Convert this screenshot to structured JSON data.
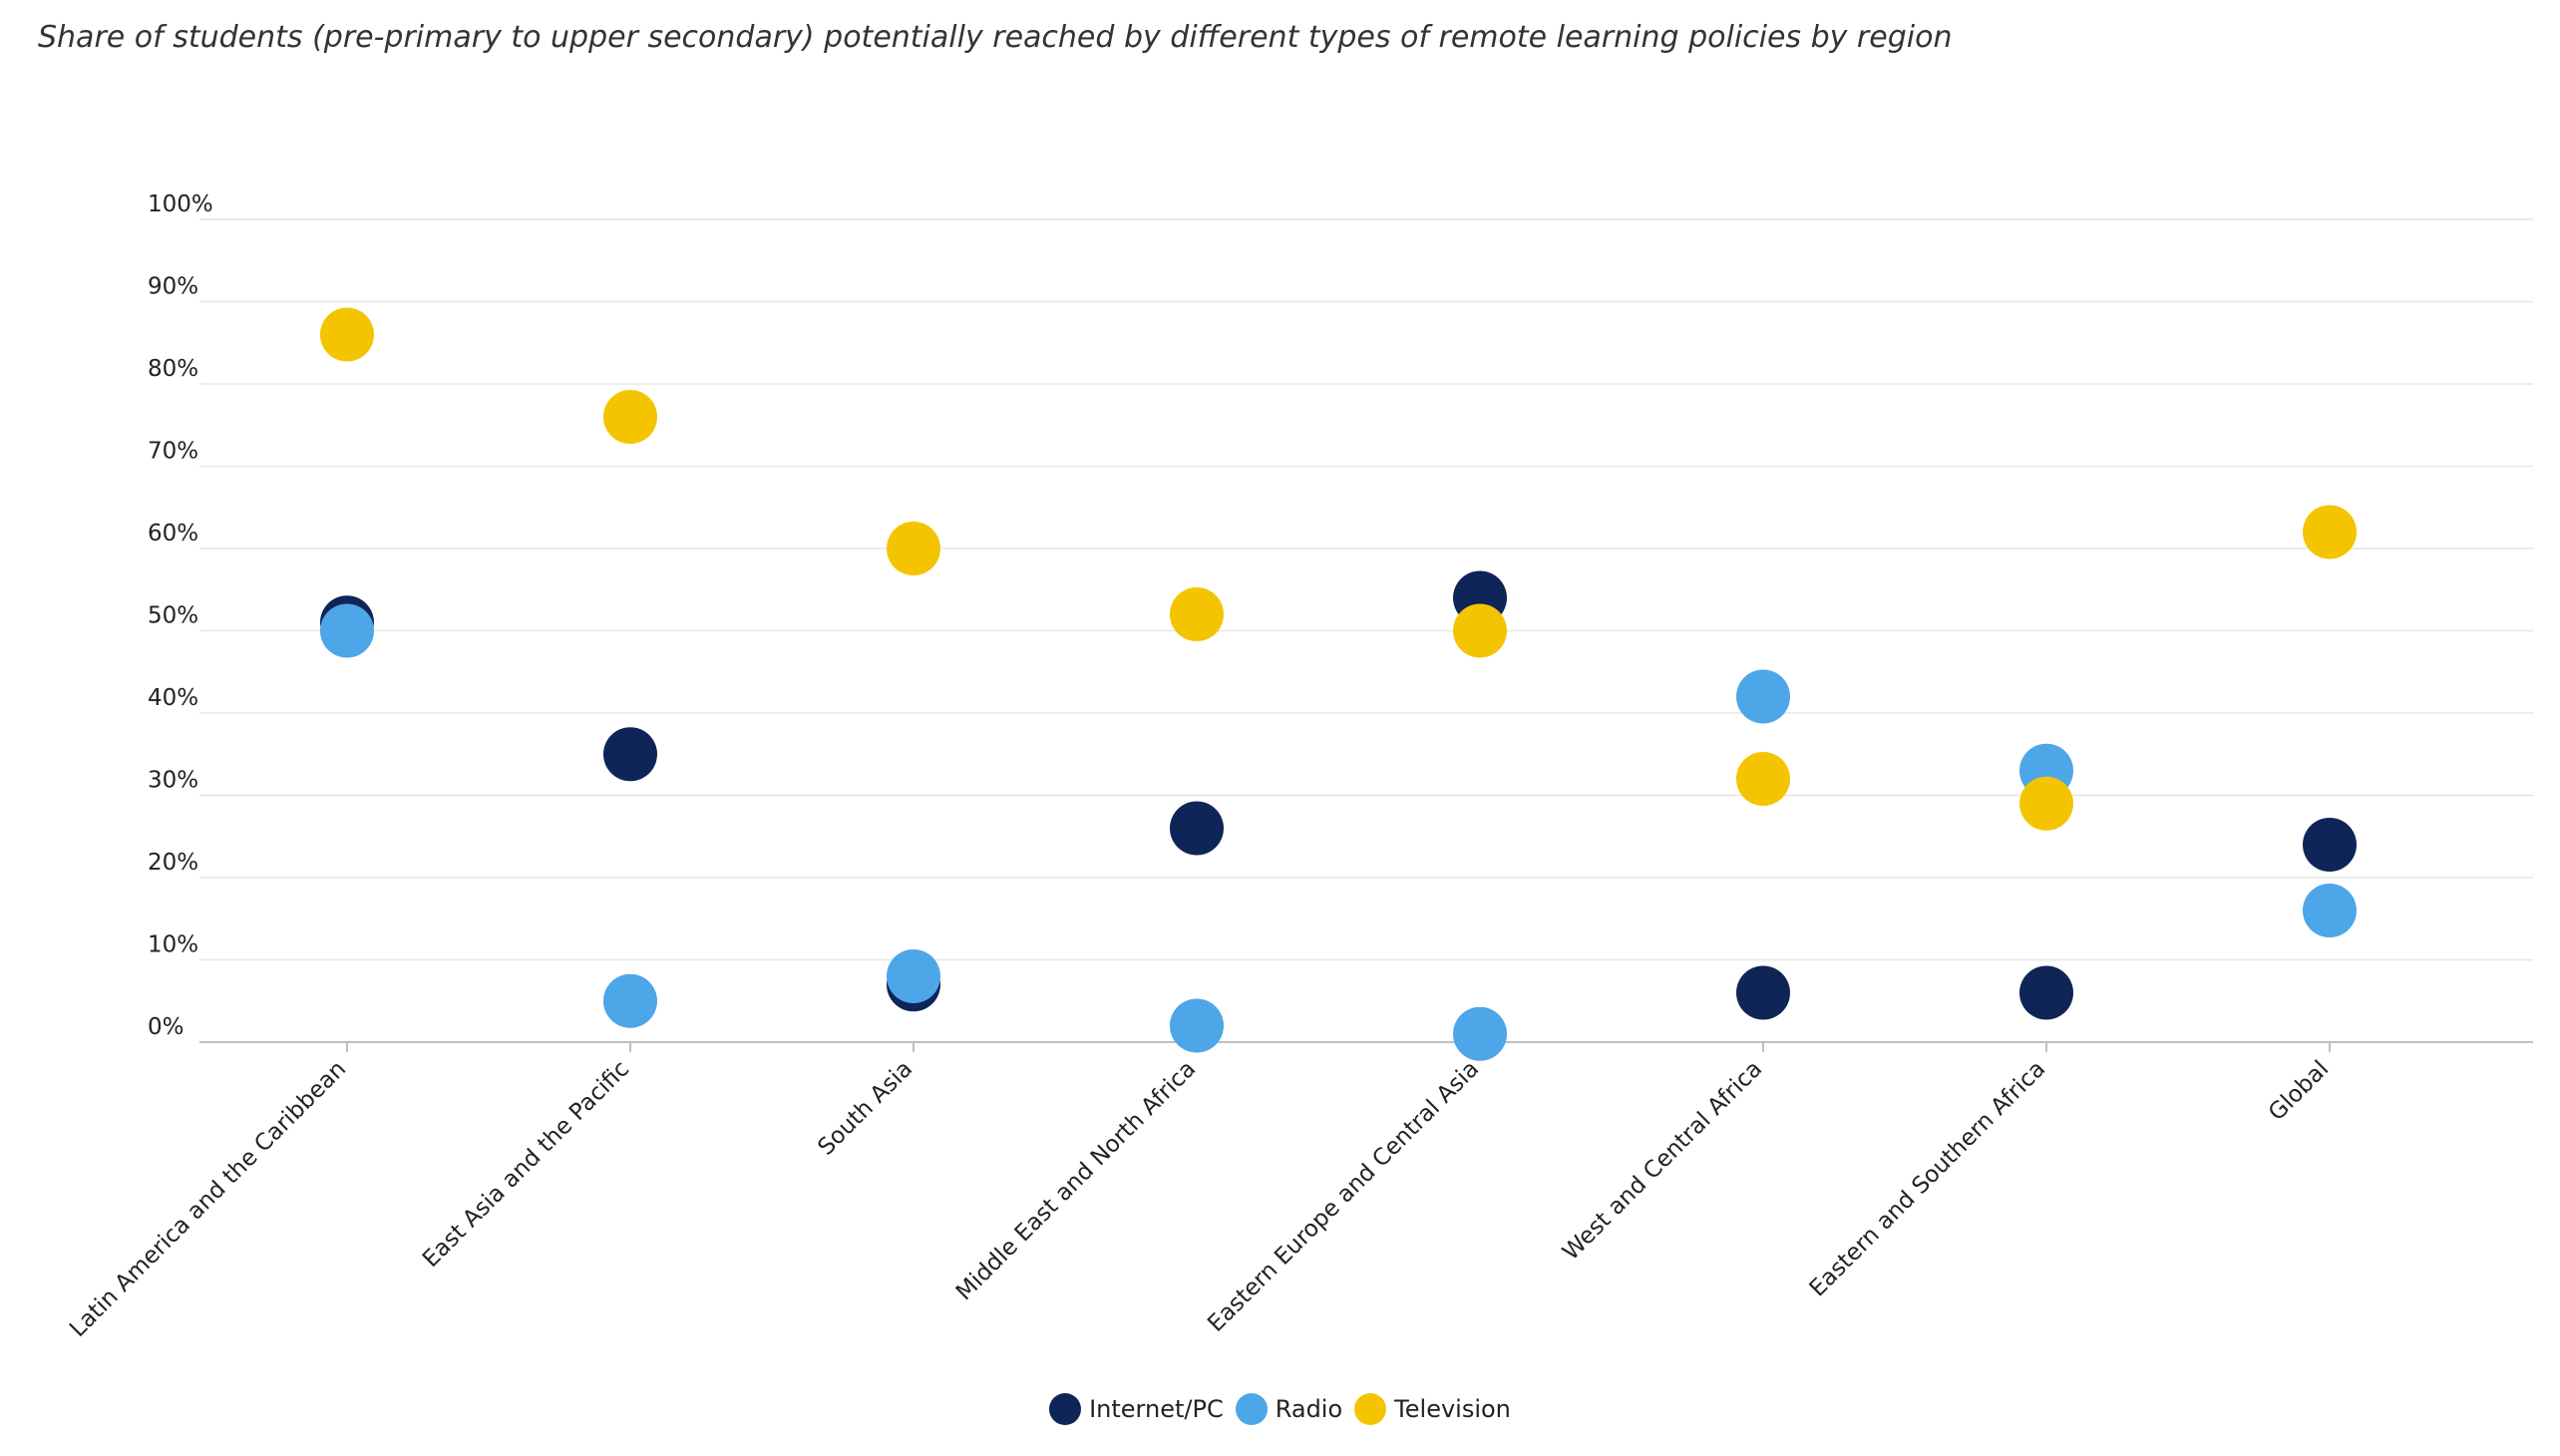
{
  "chart_data": {
    "type": "scatter",
    "title": "Share of students (pre-primary to upper secondary) potentially reached by different types of remote learning policies by region",
    "xlabel": "",
    "ylabel": "",
    "ylim": [
      0,
      100
    ],
    "y_ticks": [
      "0%",
      "10%",
      "20%",
      "30%",
      "40%",
      "50%",
      "60%",
      "70%",
      "80%",
      "90%",
      "100%"
    ],
    "y_tick_values": [
      0,
      10,
      20,
      30,
      40,
      50,
      60,
      70,
      80,
      90,
      100
    ],
    "categories": [
      "Latin America and the Caribbean",
      "East Asia and the Pacific",
      "South Asia",
      "Middle East and North Africa",
      "Eastern Europe and Central Asia",
      "West and Central Africa",
      "Eastern and Southern Africa",
      "Global"
    ],
    "grid": true,
    "legend_position": "bottom-center",
    "series": [
      {
        "name": "Internet/PC",
        "color": "#0f2557",
        "values": [
          51,
          35,
          7,
          26,
          54,
          6,
          6,
          24
        ]
      },
      {
        "name": "Radio",
        "color": "#4da6e8",
        "values": [
          50,
          5,
          8,
          2,
          1,
          42,
          33,
          16
        ]
      },
      {
        "name": "Television",
        "color": "#f5c400",
        "values": [
          86,
          76,
          60,
          52,
          50,
          32,
          29,
          62
        ]
      }
    ]
  }
}
